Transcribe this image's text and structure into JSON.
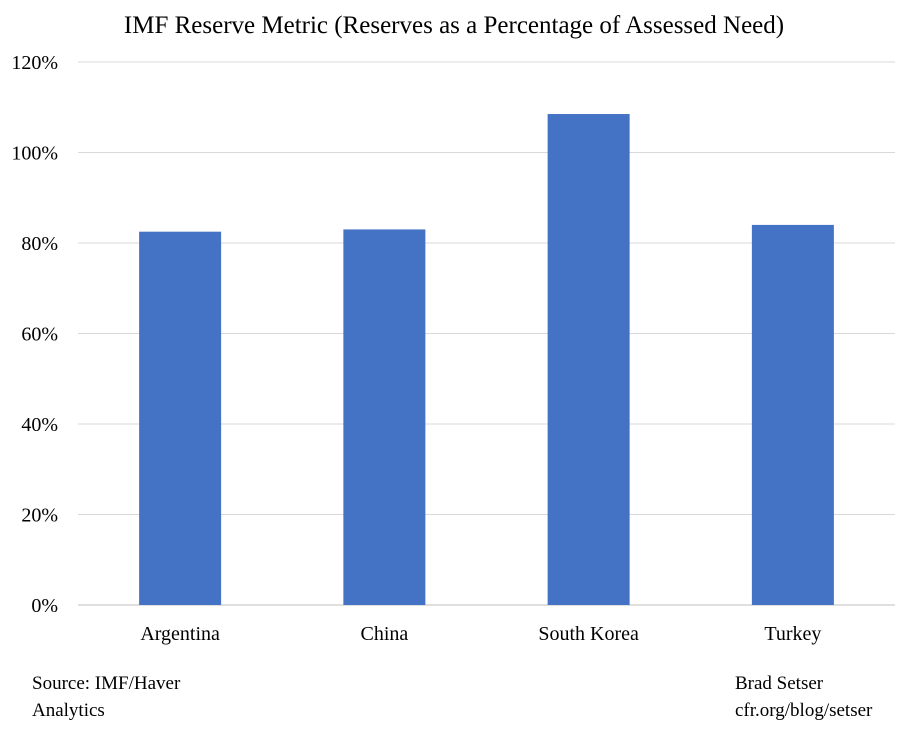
{
  "chart_data": {
    "type": "bar",
    "title": "IMF Reserve Metric (Reserves as a Percentage of Assessed Need)",
    "xlabel": "",
    "ylabel": "",
    "categories": [
      "Argentina",
      "China",
      "South Korea",
      "Turkey"
    ],
    "values": [
      82.5,
      83.0,
      108.5,
      84.0
    ],
    "ylim": [
      0,
      120
    ],
    "yticks": [
      "0%",
      "20%",
      "40%",
      "60%",
      "80%",
      "100%",
      "120%"
    ],
    "grid": true,
    "legend": "none",
    "bar_color": "#4472c4"
  },
  "footer": {
    "source": "Source: IMF/Haver Analytics",
    "credit_line1": "Brad Setser",
    "credit_line2": "cfr.org/blog/setser"
  }
}
